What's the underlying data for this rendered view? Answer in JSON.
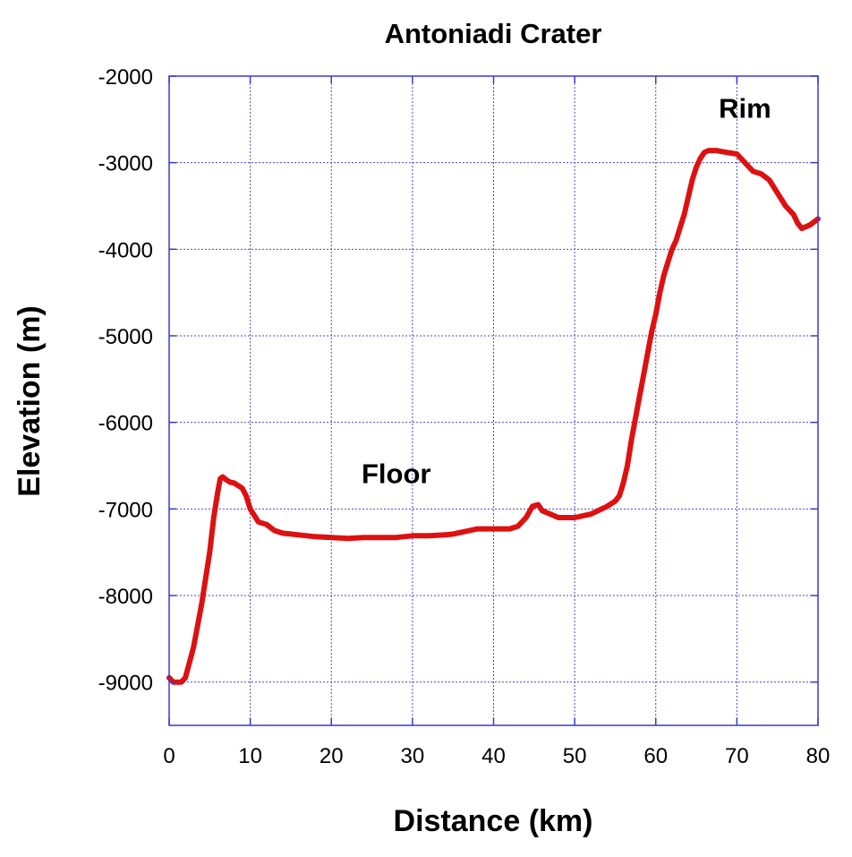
{
  "chart_data": {
    "type": "line",
    "title": "Antoniadi Crater",
    "xlabel": "Distance (km)",
    "ylabel": "Elevation (m)",
    "xlim": [
      0,
      80
    ],
    "ylim": [
      -9500,
      -2000
    ],
    "x_ticks": [
      0,
      10,
      20,
      30,
      40,
      50,
      60,
      70,
      80
    ],
    "y_ticks": [
      -2000,
      -3000,
      -4000,
      -5000,
      -6000,
      -7000,
      -8000,
      -9000
    ],
    "grid": true,
    "colors": {
      "line": "#dd1111",
      "grid": "#4a4ad6",
      "axes": "#3a3ad0"
    },
    "annotations": [
      {
        "text": "Floor",
        "x": 28,
        "y": -6700
      },
      {
        "text": "Rim",
        "x": 71,
        "y": -2480
      }
    ],
    "series": [
      {
        "x": [
          0,
          0.5,
          1,
          1.5,
          2,
          3,
          4,
          5,
          5.5,
          6,
          6.3,
          6.6,
          7,
          7.5,
          8,
          9,
          9.5,
          10,
          11,
          12,
          13,
          14,
          16,
          18,
          20,
          22,
          24,
          26,
          28,
          30,
          32,
          34,
          35,
          36,
          37,
          38,
          40,
          41,
          42,
          43,
          44,
          44.8,
          45.5,
          46,
          47,
          48,
          50,
          52,
          54,
          55,
          55.5,
          56,
          56.5,
          57,
          57.5,
          58,
          58.5,
          59,
          59.5,
          60,
          60.5,
          61,
          61.5,
          62,
          62.5,
          63,
          63.5,
          64,
          64.5,
          65,
          65.5,
          66,
          66.5,
          67,
          67.5,
          68,
          70,
          71,
          72,
          73,
          74,
          75,
          76,
          77,
          77.5,
          78,
          79,
          80
        ],
        "y": [
          -8950,
          -9000,
          -9000,
          -9000,
          -8950,
          -8600,
          -8100,
          -7500,
          -7100,
          -6800,
          -6650,
          -6630,
          -6660,
          -6690,
          -6700,
          -6760,
          -6850,
          -7000,
          -7150,
          -7180,
          -7250,
          -7280,
          -7300,
          -7320,
          -7330,
          -7340,
          -7330,
          -7330,
          -7330,
          -7310,
          -7310,
          -7300,
          -7290,
          -7270,
          -7250,
          -7230,
          -7230,
          -7230,
          -7230,
          -7200,
          -7100,
          -6970,
          -6950,
          -7020,
          -7060,
          -7100,
          -7100,
          -7060,
          -6970,
          -6910,
          -6850,
          -6700,
          -6500,
          -6200,
          -5950,
          -5700,
          -5450,
          -5200,
          -4950,
          -4750,
          -4500,
          -4300,
          -4150,
          -4000,
          -3900,
          -3750,
          -3600,
          -3400,
          -3200,
          -3050,
          -2950,
          -2880,
          -2860,
          -2860,
          -2860,
          -2870,
          -2900,
          -3000,
          -3100,
          -3130,
          -3200,
          -3350,
          -3500,
          -3600,
          -3700,
          -3760,
          -3720,
          -3650
        ]
      }
    ]
  }
}
